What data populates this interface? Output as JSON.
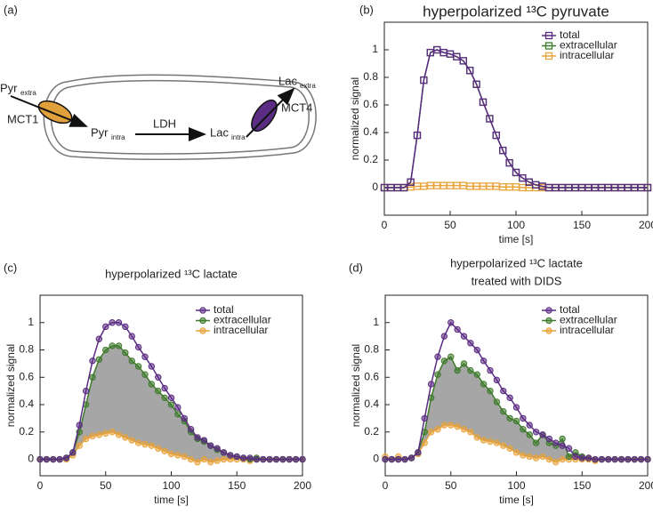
{
  "diagram": {
    "panel_label": "(a)",
    "transporter_1": "MCT1",
    "transporter_2": "MCT4",
    "enzyme": "LDH",
    "pyr_extra": {
      "name": "Pyr",
      "sub": "extra"
    },
    "pyr_intra": {
      "name": "Pyr",
      "sub": "intra"
    },
    "lac_intra": {
      "name": "Lac",
      "sub": "intra"
    },
    "lac_extra": {
      "name": "Lac",
      "sub": "extra"
    }
  },
  "chart_data": [
    {
      "type": "line",
      "panel_label": "(b)",
      "title": "hyperpolarized ¹³C pyruvate",
      "marker": "open-square",
      "xlabel": "time [s]",
      "ylabel": "normalized signal",
      "xlim": [
        0,
        200
      ],
      "xticks": [
        0,
        50,
        100,
        150,
        200
      ],
      "ylim": [
        -0.2,
        1.2
      ],
      "yticks": [
        0,
        0.2,
        0.4,
        0.6,
        0.8,
        1
      ],
      "x": [
        0,
        5,
        10,
        15,
        20,
        25,
        30,
        35,
        40,
        45,
        50,
        55,
        60,
        65,
        70,
        75,
        80,
        85,
        90,
        95,
        100,
        105,
        110,
        115,
        120,
        125,
        130,
        135,
        140,
        145,
        150,
        155,
        160,
        165,
        170,
        175,
        180,
        185,
        190,
        195,
        200
      ],
      "series": [
        {
          "name": "total",
          "color": "#5b2c83",
          "values": [
            0,
            0,
            0,
            0,
            0.04,
            0.38,
            0.78,
            0.98,
            1.0,
            0.98,
            0.97,
            0.95,
            0.92,
            0.85,
            0.75,
            0.62,
            0.5,
            0.38,
            0.27,
            0.18,
            0.11,
            0.07,
            0.04,
            0.02,
            0.01,
            0,
            0,
            0,
            0,
            0,
            0,
            0,
            0,
            0,
            0,
            0,
            0,
            0,
            0,
            0,
            0
          ]
        },
        {
          "name": "extracellular",
          "color": "#3d7a2a",
          "values": [
            0,
            0,
            0,
            0,
            0.04,
            0.38,
            0.78,
            0.98,
            1.0,
            0.98,
            0.97,
            0.95,
            0.92,
            0.85,
            0.75,
            0.62,
            0.5,
            0.38,
            0.27,
            0.18,
            0.11,
            0.07,
            0.04,
            0.02,
            0.01,
            0,
            0,
            0,
            0,
            0,
            0,
            0,
            0,
            0,
            0,
            0,
            0,
            0,
            0,
            0,
            0
          ]
        },
        {
          "name": "intracellular",
          "color": "#e8a33a",
          "values": [
            0,
            0,
            0,
            0,
            0.005,
            0.01,
            0.01,
            0.015,
            0.015,
            0.015,
            0.015,
            0.015,
            0.015,
            0.01,
            0.01,
            0.01,
            0.01,
            0.01,
            0.005,
            0.005,
            0.005,
            0,
            0,
            0,
            0,
            0,
            0,
            0,
            0,
            0,
            0,
            0,
            0,
            0,
            0,
            0,
            0,
            0,
            0,
            0,
            0
          ]
        }
      ]
    },
    {
      "type": "line",
      "panel_label": "(c)",
      "title": "hyperpolarized ¹³C lactate",
      "marker": "filled-circle",
      "shaded_area": {
        "color": "#a6a6a6",
        "between": [
          1,
          2
        ]
      },
      "xlabel": "time [s]",
      "ylabel": "normalized signal",
      "xlim": [
        0,
        200
      ],
      "xticks": [
        0,
        50,
        100,
        150,
        200
      ],
      "ylim": [
        -0.12,
        1.2
      ],
      "yticks": [
        0,
        0.2,
        0.4,
        0.6,
        0.8,
        1
      ],
      "x": [
        0,
        5,
        10,
        15,
        20,
        25,
        30,
        35,
        40,
        45,
        50,
        55,
        60,
        65,
        70,
        75,
        80,
        85,
        90,
        95,
        100,
        105,
        110,
        115,
        120,
        125,
        130,
        135,
        140,
        145,
        150,
        155,
        160,
        165,
        170,
        175,
        180,
        185,
        190,
        195,
        200
      ],
      "series": [
        {
          "name": "total",
          "color": "#5b2c83",
          "values": [
            0,
            0,
            0,
            0,
            0.01,
            0.05,
            0.25,
            0.5,
            0.72,
            0.88,
            0.97,
            1.0,
            1.0,
            0.97,
            0.9,
            0.82,
            0.75,
            0.68,
            0.6,
            0.52,
            0.45,
            0.38,
            0.3,
            0.22,
            0.16,
            0.14,
            0.1,
            0.08,
            0.05,
            0.03,
            0.02,
            0.01,
            0.01,
            0,
            0,
            0,
            0,
            0,
            0,
            0,
            0
          ]
        },
        {
          "name": "extracellular",
          "color": "#3d7a2a",
          "values": [
            0,
            0,
            0,
            0,
            0.01,
            0.05,
            0.2,
            0.4,
            0.6,
            0.73,
            0.8,
            0.83,
            0.83,
            0.78,
            0.72,
            0.68,
            0.62,
            0.55,
            0.5,
            0.45,
            0.4,
            0.33,
            0.28,
            0.2,
            0.15,
            0.13,
            0.1,
            0.07,
            0.05,
            0.03,
            0.02,
            0.01,
            0,
            0.01,
            0,
            0,
            0,
            0,
            0,
            0,
            0
          ]
        },
        {
          "name": "intracellular",
          "color": "#e8a33a",
          "values": [
            0,
            0,
            0,
            0,
            0,
            0.03,
            0.1,
            0.15,
            0.17,
            0.18,
            0.19,
            0.2,
            0.18,
            0.16,
            0.14,
            0.12,
            0.11,
            0.1,
            0.08,
            0.06,
            0.04,
            0.03,
            0.02,
            0,
            -0.02,
            0,
            -0.02,
            -0.01,
            0,
            0,
            0,
            0,
            -0.01,
            0,
            0,
            0,
            0,
            0,
            0,
            0,
            0
          ]
        }
      ]
    },
    {
      "type": "line",
      "panel_label": "(d)",
      "title": "hyperpolarized ¹³C lactate",
      "subtitle": "treated with DIDS",
      "marker": "filled-circle",
      "shaded_area": {
        "color": "#a6a6a6",
        "between": [
          1,
          2
        ]
      },
      "xlabel": "time [s]",
      "ylabel": "normalized signal",
      "xlim": [
        0,
        200
      ],
      "xticks": [
        0,
        50,
        100,
        150,
        200
      ],
      "ylim": [
        -0.12,
        1.2
      ],
      "yticks": [
        0,
        0.2,
        0.4,
        0.6,
        0.8,
        1
      ],
      "x": [
        0,
        5,
        10,
        15,
        20,
        25,
        30,
        35,
        40,
        45,
        50,
        55,
        60,
        65,
        70,
        75,
        80,
        85,
        90,
        95,
        100,
        105,
        110,
        115,
        120,
        125,
        130,
        135,
        140,
        145,
        150,
        155,
        160,
        165,
        170,
        175,
        180,
        185,
        190,
        195,
        200
      ],
      "series": [
        {
          "name": "total",
          "color": "#5b2c83",
          "values": [
            0,
            0,
            0,
            0,
            0.01,
            0.05,
            0.3,
            0.55,
            0.75,
            0.9,
            1.0,
            0.95,
            0.9,
            0.85,
            0.8,
            0.72,
            0.65,
            0.58,
            0.5,
            0.45,
            0.38,
            0.3,
            0.25,
            0.2,
            0.18,
            0.15,
            0.12,
            0.1,
            0.08,
            0.02,
            0.01,
            0.01,
            0,
            0,
            0,
            0,
            0,
            0,
            0,
            0,
            0
          ]
        },
        {
          "name": "extracellular",
          "color": "#3d7a2a",
          "values": [
            0,
            0,
            0,
            0,
            0.01,
            0.05,
            0.2,
            0.45,
            0.62,
            0.72,
            0.75,
            0.65,
            0.7,
            0.65,
            0.62,
            0.55,
            0.5,
            0.42,
            0.35,
            0.3,
            0.28,
            0.22,
            0.18,
            0.12,
            0.18,
            0.12,
            0.1,
            0.15,
            0.02,
            0.05,
            0.02,
            0.01,
            0,
            0,
            0,
            0,
            0,
            0,
            0,
            0,
            0
          ]
        },
        {
          "name": "intracellular",
          "color": "#e8a33a",
          "values": [
            0.02,
            0,
            0.02,
            0,
            0.01,
            0.04,
            0.12,
            0.2,
            0.22,
            0.25,
            0.25,
            0.24,
            0.22,
            0.2,
            0.16,
            0.14,
            0.13,
            0.12,
            0.1,
            0.08,
            0.05,
            0.03,
            0.02,
            0.01,
            0.02,
            0,
            -0.02,
            0,
            0,
            0,
            0,
            0,
            -0.01,
            0,
            0,
            0,
            0,
            0,
            0,
            0,
            0
          ]
        }
      ]
    }
  ]
}
